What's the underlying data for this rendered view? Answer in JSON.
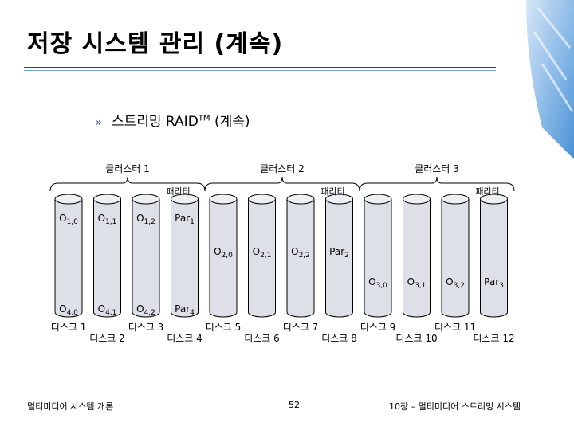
{
  "slide": {
    "title": "저장 시스템 관리 (계속)",
    "bullet": {
      "text": "스트리밍 RAID",
      "sup": "TM",
      "suffix": " (계속)"
    }
  },
  "diagram": {
    "clusters": [
      "클러스터 1",
      "클러스터 2",
      "클러스터 3"
    ],
    "parity_label": "패리티",
    "rows": [
      {
        "y_row": 0,
        "cluster": 0,
        "cells": [
          [
            "O",
            "1,0"
          ],
          [
            "O",
            "1,1"
          ],
          [
            "O",
            "1,2"
          ],
          [
            "Par",
            "1"
          ]
        ]
      },
      {
        "y_row": 1,
        "cluster": 1,
        "cells": [
          [
            "O",
            "2,0"
          ],
          [
            "O",
            "2,1"
          ],
          [
            "O",
            "2,2"
          ],
          [
            "Par",
            "2"
          ]
        ]
      },
      {
        "y_row": 2,
        "cluster": 2,
        "cells": [
          [
            "O",
            "3,0"
          ],
          [
            "O",
            "3,1"
          ],
          [
            "O",
            "3,2"
          ],
          [
            "Par",
            "3"
          ]
        ]
      },
      {
        "y_row": 3,
        "cluster": 0,
        "cells": [
          [
            "O",
            "4,0"
          ],
          [
            "O",
            "4,1"
          ],
          [
            "O",
            "4,2"
          ],
          [
            "Par",
            "4"
          ]
        ]
      }
    ],
    "disks": [
      "디스크 1",
      "디스크 2",
      "디스크 3",
      "디스크 4",
      "디스크 5",
      "디스크 6",
      "디스크 7",
      "디스크 8",
      "디스크 9",
      "디스크 10",
      "디스크 11",
      "디스크 12"
    ]
  },
  "footer": {
    "left": "멀티미디어 시스템 개론",
    "page": "52",
    "right": "10장 – 멀티미디어 스트리밍 시스템"
  },
  "colors": {
    "cylinder": "#dde0e6",
    "title_rule": "#1f3f8f"
  }
}
